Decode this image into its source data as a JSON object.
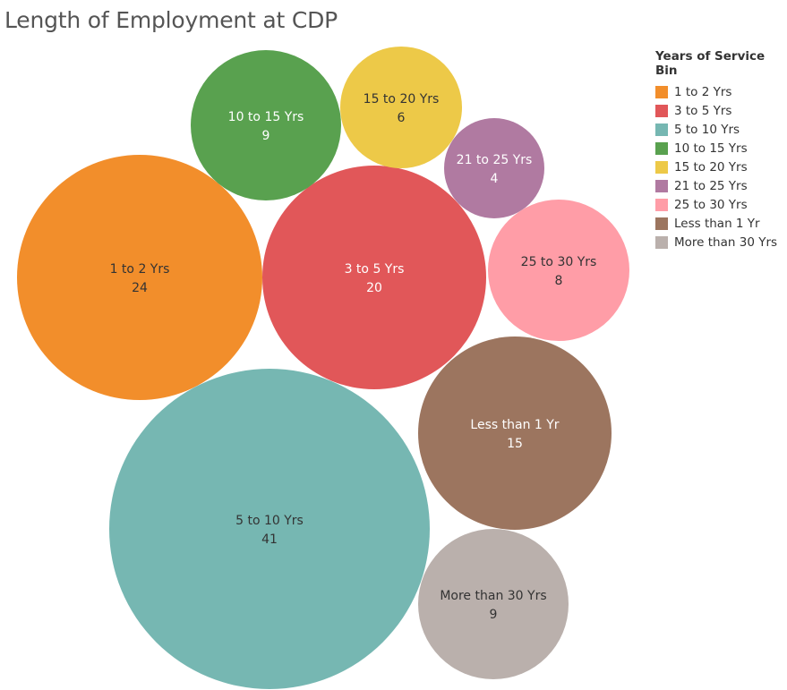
{
  "page": {
    "title": "Length of Employment at CDP"
  },
  "chart_data": {
    "type": "bubble",
    "title": "Length of Employment at CDP",
    "legend_title": "Years of Service Bin",
    "legend_placement": "right",
    "series": [
      {
        "name": "1 to 2 Yrs",
        "value": 24,
        "color": "#F28E2B",
        "label_color": "#333333"
      },
      {
        "name": "3 to 5 Yrs",
        "value": 20,
        "color": "#E15759",
        "label_color": "#ffffff"
      },
      {
        "name": "5 to 10 Yrs",
        "value": 41,
        "color": "#76B7B2",
        "label_color": "#333333"
      },
      {
        "name": "10 to 15 Yrs",
        "value": 9,
        "color": "#59A14F",
        "label_color": "#ffffff"
      },
      {
        "name": "15 to 20 Yrs",
        "value": 6,
        "color": "#EDC948",
        "label_color": "#333333"
      },
      {
        "name": "21 to 25 Yrs",
        "value": 4,
        "color": "#B07AA1",
        "label_color": "#ffffff"
      },
      {
        "name": "25 to 30 Yrs",
        "value": 8,
        "color": "#FF9DA7",
        "label_color": "#333333"
      },
      {
        "name": "Less than 1 Yr",
        "value": 15,
        "color": "#9C755F",
        "label_color": "#ffffff"
      },
      {
        "name": "More than 30 Yrs",
        "value": 9,
        "color": "#BAB0AC",
        "label_color": "#333333"
      }
    ]
  }
}
